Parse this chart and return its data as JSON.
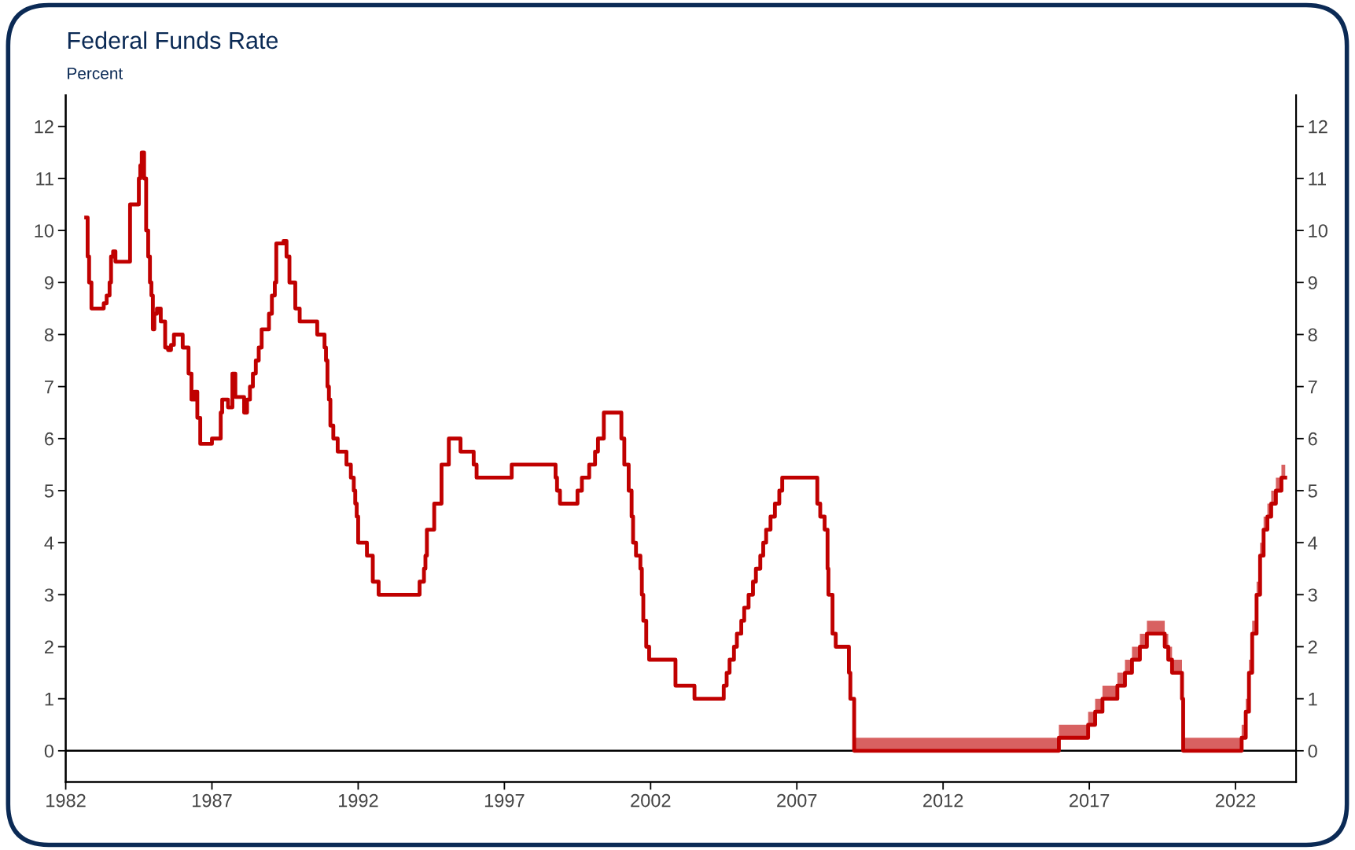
{
  "chart_data": {
    "type": "step",
    "title": "Federal Funds Rate",
    "subtitle": "Percent",
    "xlim": [
      1982,
      2024.07
    ],
    "xticks": [
      1982,
      1987,
      1992,
      1997,
      2002,
      2007,
      2012,
      2017,
      2022
    ],
    "ylim": [
      -0.6,
      12.6
    ],
    "yticks": [
      0,
      1,
      2,
      3,
      4,
      5,
      6,
      7,
      8,
      9,
      10,
      11,
      12
    ],
    "y2lim": [
      -0.6,
      12.6
    ],
    "y2ticks": [
      0,
      1,
      2,
      3,
      4,
      5,
      6,
      7,
      8,
      9,
      10,
      11,
      12
    ],
    "grid": false,
    "legend": false,
    "ref_lines": [
      {
        "axis": "y",
        "value": 0,
        "color": "#000000"
      }
    ],
    "series": [
      {
        "color": "#c00000",
        "x": [
          1982.7,
          1982.75,
          1982.8,
          1982.88,
          1982.95,
          1983.3,
          1983.4,
          1983.5,
          1983.55,
          1983.62,
          1983.7,
          1984.2,
          1984.5,
          1984.55,
          1984.6,
          1984.68,
          1984.75,
          1984.82,
          1984.88,
          1984.93,
          1984.98,
          1985.03,
          1985.12,
          1985.25,
          1985.4,
          1985.5,
          1985.6,
          1985.7,
          1986.0,
          1986.2,
          1986.3,
          1986.4,
          1986.5,
          1986.6,
          1987.0,
          1987.3,
          1987.35,
          1987.55,
          1987.7,
          1987.8,
          1988.1,
          1988.2,
          1988.3,
          1988.4,
          1988.5,
          1988.6,
          1988.7,
          1988.95,
          1989.05,
          1989.15,
          1989.2,
          1989.45,
          1989.55,
          1989.65,
          1989.85,
          1990.0,
          1990.6,
          1990.85,
          1990.9,
          1990.95,
          1991.0,
          1991.05,
          1991.15,
          1991.3,
          1991.6,
          1991.75,
          1991.85,
          1991.9,
          1991.95,
          1992.0,
          1992.3,
          1992.5,
          1992.7,
          1994.1,
          1994.25,
          1994.3,
          1994.35,
          1994.6,
          1994.85,
          1995.1,
          1995.5,
          1995.95,
          1996.05,
          1997.25,
          1998.75,
          1998.8,
          1998.9,
          1999.5,
          1999.65,
          1999.9,
          2000.1,
          2000.2,
          2000.4,
          2001.0,
          2001.1,
          2001.25,
          2001.35,
          2001.4,
          2001.5,
          2001.65,
          2001.7,
          2001.75,
          2001.85,
          2001.95,
          2002.85,
          2003.5,
          2004.5,
          2004.6,
          2004.7,
          2004.85,
          2004.95,
          2005.1,
          2005.2,
          2005.35,
          2005.5,
          2005.6,
          2005.75,
          2005.85,
          2005.95,
          2006.1,
          2006.25,
          2006.4,
          2006.5,
          2007.7,
          2007.8,
          2007.95,
          2008.05,
          2008.08,
          2008.22,
          2008.33,
          2008.78,
          2008.83,
          2008.96,
          2015.96,
          2016.96,
          2017.2,
          2017.45,
          2017.96,
          2018.22,
          2018.46,
          2018.73,
          2018.97,
          2019.58,
          2019.7,
          2019.83,
          2020.17,
          2020.21,
          2022.21,
          2022.35,
          2022.46,
          2022.57,
          2022.72,
          2022.84,
          2022.96,
          2023.09,
          2023.22,
          2023.38,
          2023.57,
          2023.7
        ],
        "values": [
          10.25,
          9.5,
          9.0,
          8.5,
          8.5,
          8.6,
          8.75,
          9.0,
          9.5,
          9.6,
          9.4,
          10.5,
          11.0,
          11.25,
          11.5,
          11.0,
          10.0,
          9.5,
          9.0,
          8.75,
          8.1,
          8.4,
          8.5,
          8.25,
          7.75,
          7.7,
          7.8,
          8.0,
          7.75,
          7.25,
          6.75,
          6.9,
          6.4,
          5.9,
          6.0,
          6.5,
          6.75,
          6.6,
          7.25,
          6.8,
          6.5,
          6.75,
          7.0,
          7.25,
          7.5,
          7.75,
          8.1,
          8.4,
          8.75,
          9.0,
          9.75,
          9.8,
          9.5,
          9.0,
          8.5,
          8.25,
          8.0,
          7.75,
          7.5,
          7.0,
          6.75,
          6.25,
          6.0,
          5.75,
          5.5,
          5.25,
          5.0,
          4.75,
          4.5,
          4.0,
          3.75,
          3.25,
          3.0,
          3.25,
          3.5,
          3.75,
          4.25,
          4.75,
          5.5,
          6.0,
          5.75,
          5.5,
          5.25,
          5.5,
          5.25,
          5.0,
          4.75,
          5.0,
          5.25,
          5.5,
          5.75,
          6.0,
          6.5,
          6.0,
          5.5,
          5.0,
          4.5,
          4.0,
          3.75,
          3.5,
          3.0,
          2.5,
          2.0,
          1.75,
          1.25,
          1.0,
          1.25,
          1.5,
          1.75,
          2.0,
          2.25,
          2.5,
          2.75,
          3.0,
          3.25,
          3.5,
          3.75,
          4.0,
          4.25,
          4.5,
          4.75,
          5.0,
          5.25,
          4.75,
          4.5,
          4.25,
          3.5,
          3.0,
          2.25,
          2.0,
          1.5,
          1.0,
          0.0,
          0.25,
          0.5,
          0.75,
          1.0,
          1.25,
          1.5,
          1.75,
          2.0,
          2.25,
          2.0,
          1.75,
          1.5,
          1.0,
          0.0,
          0.25,
          0.75,
          1.5,
          2.25,
          3.0,
          3.75,
          4.25,
          4.5,
          4.75,
          5.0,
          5.25,
          5.25
        ],
        "lower": [
          null,
          null,
          null,
          null,
          null,
          null,
          null,
          null,
          null,
          null,
          null,
          null,
          null,
          null,
          null,
          null,
          null,
          null,
          null,
          null,
          null,
          null,
          null,
          null,
          null,
          null,
          null,
          null,
          null,
          null,
          null,
          null,
          null,
          null,
          null,
          null,
          null,
          null,
          null,
          null,
          null,
          null,
          null,
          null,
          null,
          null,
          null,
          null,
          null,
          null,
          null,
          null,
          null,
          null,
          null,
          null,
          null,
          null,
          null,
          null,
          null,
          null,
          null,
          null,
          null,
          null,
          null,
          null,
          null,
          null,
          null,
          null,
          null,
          null,
          null,
          null,
          null,
          null,
          null,
          null,
          null,
          null,
          null,
          null,
          null,
          null,
          null,
          null,
          null,
          null,
          null,
          null,
          null,
          null,
          null,
          null,
          null,
          null,
          null,
          null,
          null,
          null,
          null,
          null,
          null,
          null,
          null,
          null,
          null,
          null,
          null,
          null,
          null,
          null,
          null,
          null,
          null,
          null,
          null,
          null,
          null,
          null,
          null,
          null,
          null,
          null,
          null,
          null,
          null,
          null,
          null,
          null,
          0.0,
          0.25,
          0.5,
          0.75,
          1.0,
          1.25,
          1.5,
          1.75,
          2.0,
          2.25,
          2.0,
          1.75,
          1.5,
          1.0,
          0.0,
          0.25,
          0.75,
          1.5,
          2.25,
          3.0,
          3.75,
          4.25,
          4.5,
          4.75,
          5.0,
          5.25,
          5.25
        ],
        "upper": [
          null,
          null,
          null,
          null,
          null,
          null,
          null,
          null,
          null,
          null,
          null,
          null,
          null,
          null,
          null,
          null,
          null,
          null,
          null,
          null,
          null,
          null,
          null,
          null,
          null,
          null,
          null,
          null,
          null,
          null,
          null,
          null,
          null,
          null,
          null,
          null,
          null,
          null,
          null,
          null,
          null,
          null,
          null,
          null,
          null,
          null,
          null,
          null,
          null,
          null,
          null,
          null,
          null,
          null,
          null,
          null,
          null,
          null,
          null,
          null,
          null,
          null,
          null,
          null,
          null,
          null,
          null,
          null,
          null,
          null,
          null,
          null,
          null,
          null,
          null,
          null,
          null,
          null,
          null,
          null,
          null,
          null,
          null,
          null,
          null,
          null,
          null,
          null,
          null,
          null,
          null,
          null,
          null,
          null,
          null,
          null,
          null,
          null,
          null,
          null,
          null,
          null,
          null,
          null,
          null,
          null,
          null,
          null,
          null,
          null,
          null,
          null,
          null,
          null,
          null,
          null,
          null,
          null,
          null,
          null,
          null,
          null,
          null,
          null,
          null,
          null,
          null,
          null,
          null,
          null,
          null,
          null,
          0.25,
          0.5,
          0.75,
          1.0,
          1.25,
          1.5,
          1.75,
          2.0,
          2.25,
          2.5,
          2.25,
          2.0,
          1.75,
          1.25,
          0.25,
          0.5,
          1.0,
          1.75,
          2.5,
          3.25,
          4.0,
          4.5,
          4.75,
          5.0,
          5.25,
          5.5,
          5.5
        ]
      }
    ]
  }
}
